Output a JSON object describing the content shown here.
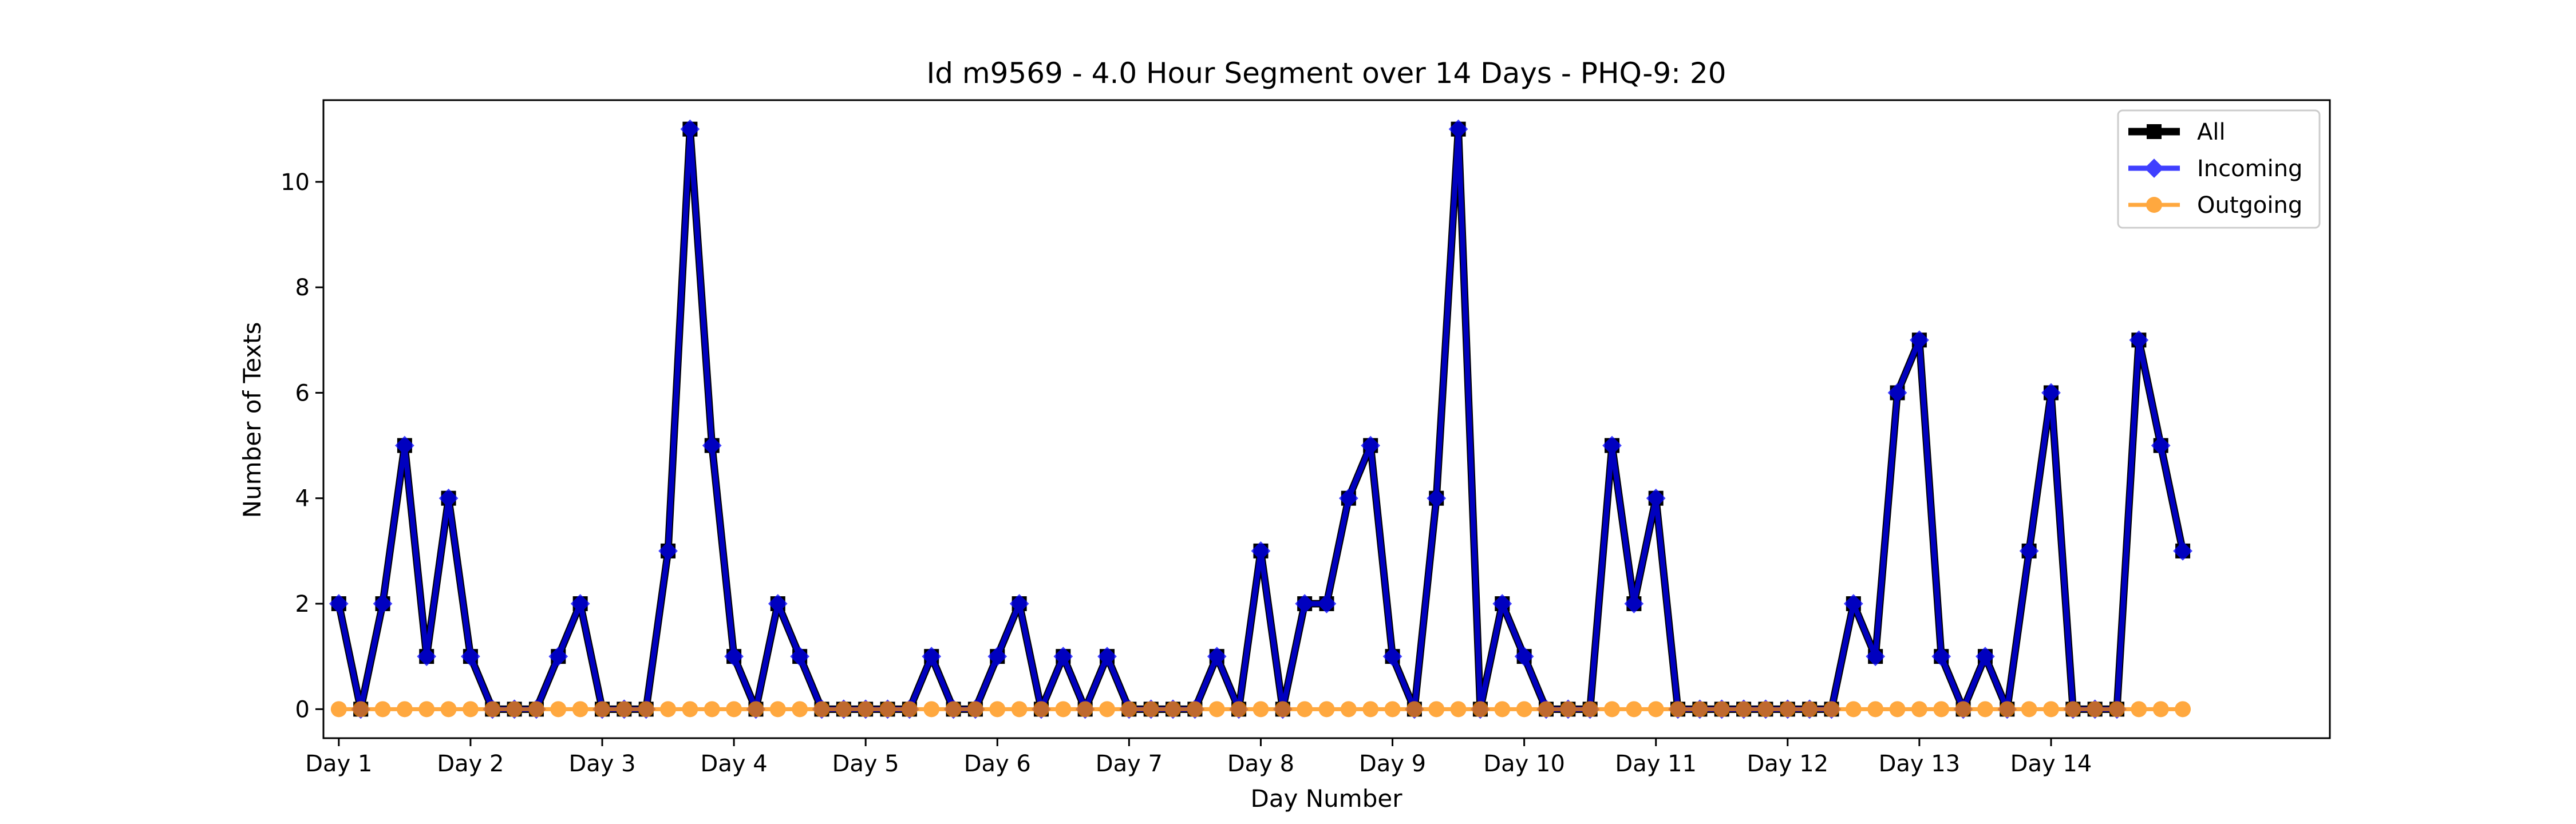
{
  "chart_data": {
    "type": "line",
    "title": "Id m9569 - 4.0 Hour Segment over 14 Days - PHQ-9: 20",
    "xlabel": "Day Number",
    "ylabel": "Number of Texts",
    "xlim": [
      -0.7,
      90.7
    ],
    "ylim": [
      -0.55,
      11.55
    ],
    "x_ticks": [
      {
        "value": 0,
        "label": "Day 1"
      },
      {
        "value": 6,
        "label": "Day 2"
      },
      {
        "value": 12,
        "label": "Day 3"
      },
      {
        "value": 18,
        "label": "Day 4"
      },
      {
        "value": 24,
        "label": "Day 5"
      },
      {
        "value": 30,
        "label": "Day 6"
      },
      {
        "value": 36,
        "label": "Day 7"
      },
      {
        "value": 42,
        "label": "Day 8"
      },
      {
        "value": 48,
        "label": "Day 9"
      },
      {
        "value": 54,
        "label": "Day 10"
      },
      {
        "value": 60,
        "label": "Day 11"
      },
      {
        "value": 66,
        "label": "Day 12"
      },
      {
        "value": 72,
        "label": "Day 13"
      },
      {
        "value": 78,
        "label": "Day 14"
      }
    ],
    "y_ticks": [
      0,
      2,
      4,
      6,
      8,
      10
    ],
    "grid": false,
    "legend_position": "top-right",
    "series": [
      {
        "name": "All",
        "color": "#000000",
        "marker": "square",
        "values": [
          2,
          0,
          2,
          5,
          1,
          4,
          1,
          0,
          0,
          0,
          1,
          2,
          0,
          0,
          0,
          3,
          11,
          5,
          1,
          0,
          2,
          1,
          0,
          0,
          0,
          0,
          0,
          1,
          0,
          0,
          1,
          2,
          0,
          1,
          0,
          1,
          0,
          0,
          0,
          0,
          1,
          0,
          3,
          0,
          2,
          2,
          4,
          5,
          1,
          0,
          4,
          11,
          0,
          2,
          1,
          0,
          0,
          0,
          5,
          2,
          4,
          0,
          0,
          0,
          0,
          0,
          0,
          0,
          0,
          2,
          1,
          6,
          7,
          1,
          0,
          1,
          0,
          3,
          6,
          0,
          0,
          0,
          7,
          5,
          3
        ]
      },
      {
        "name": "Incoming",
        "color": "#0000ff",
        "marker": "diamond",
        "values": [
          2,
          0,
          2,
          5,
          1,
          4,
          1,
          0,
          0,
          0,
          1,
          2,
          0,
          0,
          0,
          3,
          11,
          5,
          1,
          0,
          2,
          1,
          0,
          0,
          0,
          0,
          0,
          1,
          0,
          0,
          1,
          2,
          0,
          1,
          0,
          1,
          0,
          0,
          0,
          0,
          1,
          0,
          3,
          0,
          2,
          2,
          4,
          5,
          1,
          0,
          4,
          11,
          0,
          2,
          1,
          0,
          0,
          0,
          5,
          2,
          4,
          0,
          0,
          0,
          0,
          0,
          0,
          0,
          0,
          2,
          1,
          6,
          7,
          1,
          0,
          1,
          0,
          3,
          6,
          0,
          0,
          0,
          7,
          5,
          3
        ]
      },
      {
        "name": "Outgoing",
        "color": "#ff8c00",
        "marker": "circle",
        "values": [
          0,
          0,
          0,
          0,
          0,
          0,
          0,
          0,
          0,
          0,
          0,
          0,
          0,
          0,
          0,
          0,
          0,
          0,
          0,
          0,
          0,
          0,
          0,
          0,
          0,
          0,
          0,
          0,
          0,
          0,
          0,
          0,
          0,
          0,
          0,
          0,
          0,
          0,
          0,
          0,
          0,
          0,
          0,
          0,
          0,
          0,
          0,
          0,
          0,
          0,
          0,
          0,
          0,
          0,
          0,
          0,
          0,
          0,
          0,
          0,
          0,
          0,
          0,
          0,
          0,
          0,
          0,
          0,
          0,
          0,
          0,
          0,
          0,
          0,
          0,
          0,
          0,
          0,
          0,
          0,
          0,
          0,
          0,
          0,
          0
        ]
      }
    ]
  }
}
